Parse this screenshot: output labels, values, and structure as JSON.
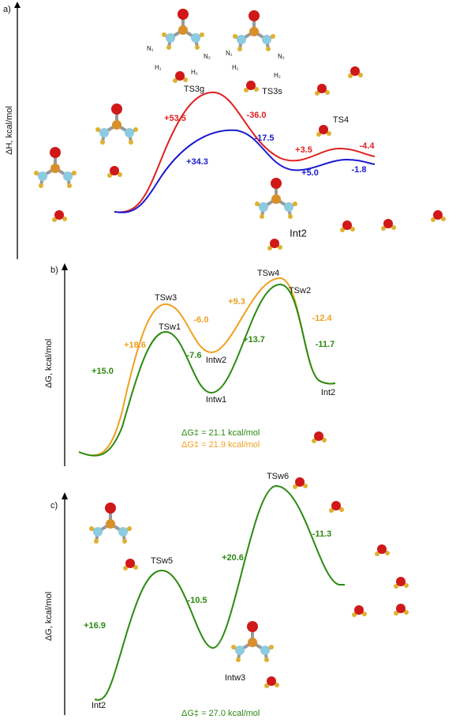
{
  "panels": [
    {
      "label": "a)",
      "axis_label": "ΔH, kcal/mol",
      "states": [
        "TS3g",
        "TS3s",
        "TS4",
        "Int2"
      ],
      "atom_labels": [
        "N₁",
        "N₂",
        "H₁",
        "H₂",
        "N₁",
        "N₂",
        "H₁",
        "H₂"
      ],
      "red_labels": [
        "+53.5",
        "-36.0",
        "+3.5",
        "-4.4"
      ],
      "blue_labels": [
        "+34.3",
        "-17.5",
        "+5.0",
        "-1.8"
      ]
    },
    {
      "label": "b)",
      "axis_label": "ΔG, kcal/mol",
      "states": [
        "TSw3",
        "TSw1",
        "Intw2",
        "Intw1",
        "TSw4",
        "TSw2",
        "Int2"
      ],
      "green_labels": [
        "+15.0",
        "-7.6",
        "+13.7",
        "-11.7"
      ],
      "orange_labels": [
        "+18.6",
        "-6.0",
        "+9.3",
        "-12.4"
      ],
      "barriers": [
        "ΔG‡ = 21.1 kcal/mol",
        "ΔG‡ = 21.9 kcal/mol"
      ]
    },
    {
      "label": "c)",
      "axis_label": "ΔG, kcal/mol",
      "states": [
        "TSw5",
        "TSw6",
        "Intw3",
        "Int2"
      ],
      "green_labels": [
        "+16.9",
        "-10.5",
        "+20.6",
        "-11.3"
      ],
      "barriers": [
        "ΔG‡ = 27.0 kcal/mol"
      ]
    }
  ]
}
